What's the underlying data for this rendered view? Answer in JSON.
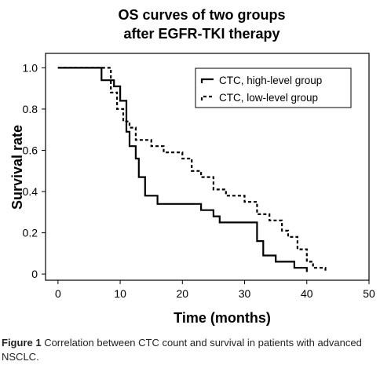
{
  "chart_data": {
    "type": "line",
    "step": true,
    "title_lines": [
      "OS curves of two groups",
      "after EGFR-TKI therapy"
    ],
    "xlabel": "Time (months)",
    "ylabel": "Survival rate",
    "xlim": [
      -2,
      50
    ],
    "ylim": [
      -0.03,
      1.07
    ],
    "xticks": [
      "0",
      "10",
      "20",
      "30",
      "40",
      "50"
    ],
    "yticks": [
      "0",
      "0.2",
      "0.4",
      "0.6",
      "0.8",
      "1.0"
    ],
    "grid": false,
    "legend_position": "top-right",
    "series": [
      {
        "name": "CTC, high-level group",
        "style": "solid",
        "color": "#000000",
        "x": [
          0,
          7,
          9,
          10,
          11,
          11.5,
          12.5,
          13,
          14,
          16,
          18,
          23,
          25,
          26,
          32,
          33,
          35,
          38,
          40
        ],
        "y": [
          1.0,
          0.94,
          0.91,
          0.84,
          0.69,
          0.62,
          0.56,
          0.47,
          0.38,
          0.34,
          0.34,
          0.31,
          0.28,
          0.25,
          0.16,
          0.09,
          0.06,
          0.03,
          0.01
        ]
      },
      {
        "name": "CTC, low-level group",
        "style": "dashed",
        "color": "#000000",
        "x": [
          0,
          8.5,
          9.5,
          10.5,
          11.5,
          12.5,
          15,
          17,
          20,
          21.5,
          23,
          24,
          25,
          27,
          30,
          32,
          34,
          36,
          37,
          38.5,
          40,
          41,
          43
        ],
        "y": [
          1.0,
          0.88,
          0.8,
          0.74,
          0.71,
          0.65,
          0.62,
          0.59,
          0.56,
          0.5,
          0.47,
          0.47,
          0.41,
          0.38,
          0.35,
          0.29,
          0.26,
          0.21,
          0.18,
          0.12,
          0.06,
          0.03,
          0.01
        ]
      }
    ]
  },
  "caption": {
    "label": "Figure 1",
    "text": " Correlation between CTC count and survival in patients with advanced NSCLC."
  }
}
